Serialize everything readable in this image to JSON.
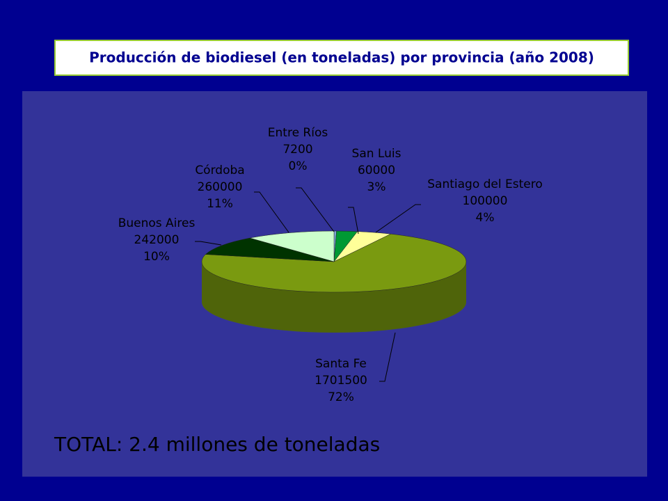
{
  "chart_data": {
    "type": "pie",
    "title": "Producción de biodiesel (en toneladas) por provincia (año 2008)",
    "annotation": "TOTAL: 2.4 millones de toneladas",
    "categories": [
      "Entre Ríos",
      "San Luis",
      "Santiago del Estero",
      "Santa Fe",
      "Buenos Aires",
      "Córdoba"
    ],
    "values": [
      7200,
      60000,
      100000,
      1701500,
      242000,
      260000
    ],
    "shares": [
      {
        "value": 0,
        "label": "0%"
      },
      {
        "value": 3,
        "label": "3%"
      },
      {
        "value": 4,
        "label": "4%"
      },
      {
        "value": 72,
        "label": "72%"
      },
      {
        "value": 10,
        "label": "10%"
      },
      {
        "value": 11,
        "label": "11%"
      }
    ],
    "colors": [
      "#7fa8d8",
      "#009933",
      "#ffff99",
      "#7a9a10",
      "#003300",
      "#ccffcc"
    ]
  }
}
